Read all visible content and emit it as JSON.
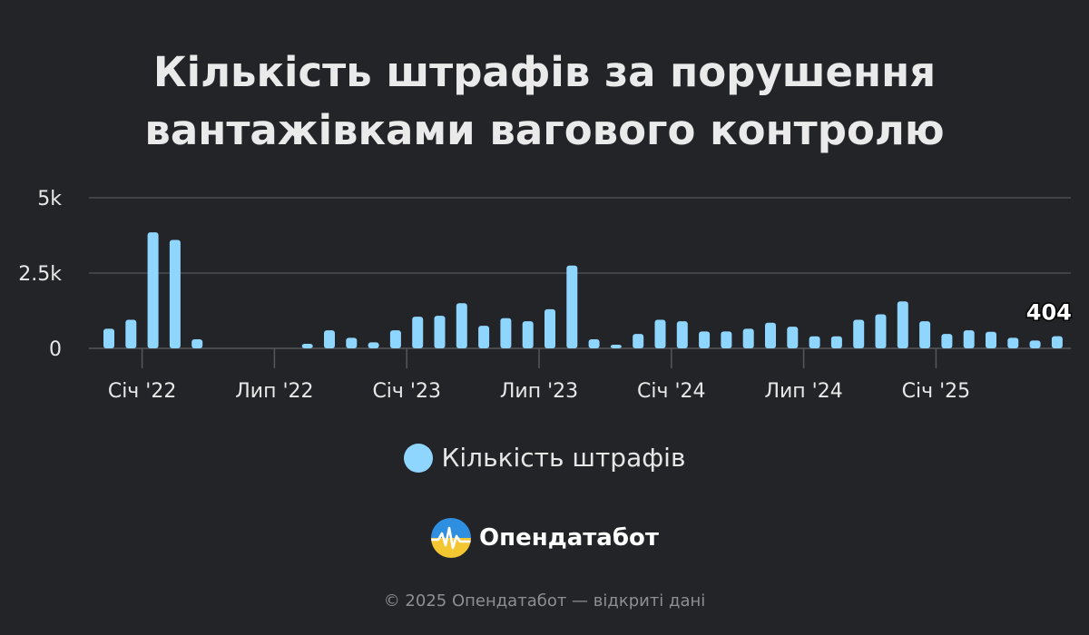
{
  "title_line1": "Кількість штрафів за порушення",
  "title_line2": "вантажівками вагового контролю",
  "legend": {
    "label": "Кількість штрафів"
  },
  "logo": {
    "text": "Опендатабот",
    "icon": "opendatabot-logo-icon"
  },
  "footer": "© 2025 Опендатабот — відкриті дані",
  "colors": {
    "bar": "#8fd6ff",
    "background": "#222428",
    "grid": "#4a4c50"
  },
  "chart_data": {
    "type": "bar",
    "series": [
      {
        "name": "Кількість штрафів",
        "values": [
          650,
          950,
          3850,
          3600,
          300,
          0,
          0,
          0,
          0,
          150,
          600,
          350,
          200,
          600,
          1050,
          1080,
          1500,
          750,
          1000,
          900,
          1300,
          2750,
          300,
          120,
          480,
          950,
          900,
          560,
          560,
          650,
          850,
          720,
          400,
          400,
          950,
          1130,
          1560,
          900,
          480,
          600,
          550,
          350,
          260,
          404
        ]
      }
    ],
    "x_start": "2021-11",
    "x_ticks": [
      {
        "index": 2,
        "label": "Січ '22"
      },
      {
        "index": 8,
        "label": "Лип '22"
      },
      {
        "index": 14,
        "label": "Січ '23"
      },
      {
        "index": 20,
        "label": "Лип '23"
      },
      {
        "index": 26,
        "label": "Січ '24"
      },
      {
        "index": 32,
        "label": "Лип '24"
      },
      {
        "index": 38,
        "label": "Січ '25"
      }
    ],
    "y_ticks": [
      {
        "value": 0,
        "label": "0"
      },
      {
        "value": 2500,
        "label": "2.5k"
      },
      {
        "value": 5000,
        "label": "5k"
      }
    ],
    "ylim": [
      0,
      5000
    ],
    "grid": true,
    "last_value_label": "404",
    "legend_position": "bottom-center"
  }
}
